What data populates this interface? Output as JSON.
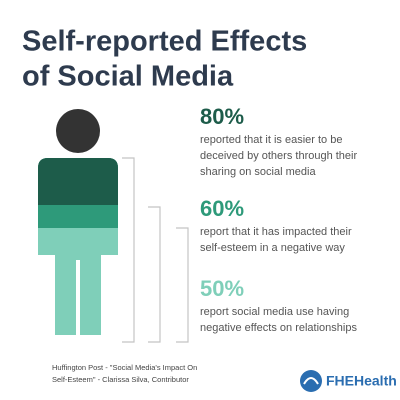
{
  "title": [
    "Self-reported Effects",
    "of Social Media"
  ],
  "stats": [
    {
      "figure": "80%",
      "lines": [
        "reported that it is easier to be",
        "deceived by others through their",
        "sharing on social media"
      ]
    },
    {
      "figure": "60%",
      "lines": [
        "report that it has impacted their",
        "self-esteem in a negative way"
      ]
    },
    {
      "figure": "50%",
      "lines": [
        "report social media use having",
        "negative effects on relationships"
      ]
    }
  ],
  "source": [
    "Huffington Post - \"Social Media's Impact On",
    "Self-Esteem\"  - Clarissa Silva, Contributor"
  ],
  "logo": "FHEHealth"
}
